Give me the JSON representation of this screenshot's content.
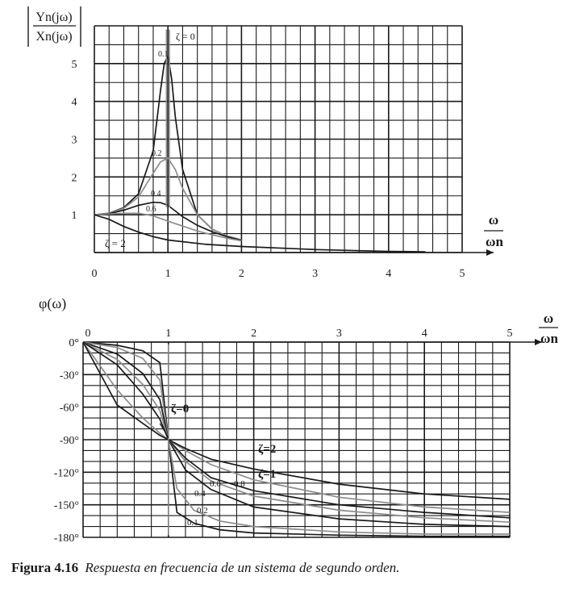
{
  "figure": {
    "caption_label": "Figura 4.16",
    "caption_text": "Respuesta en frecuencia de un sistema de segundo orden."
  },
  "chart_data": [
    {
      "type": "line",
      "title": "",
      "ylabel_num": "Yn(jω)",
      "ylabel_den": "Xn(jω)",
      "xlabel_num": "ω",
      "xlabel_den": "ωn",
      "xlim": [
        0,
        5
      ],
      "ylim": [
        0,
        6
      ],
      "grid": true,
      "x_ticks": [
        "0",
        "1",
        "2",
        "3",
        "4",
        "5"
      ],
      "y_ticks": [
        "1",
        "2",
        "3",
        "4",
        "5"
      ],
      "annotations": [
        "ζ = 0",
        "0.1",
        "0.2",
        "0.4",
        "0.6",
        "ζ = 2"
      ],
      "series": [
        {
          "name": "0.1",
          "x": [
            0,
            0.2,
            0.4,
            0.6,
            0.8,
            0.9,
            0.95,
            1.0,
            1.05,
            1.1,
            1.2,
            1.4,
            1.6,
            1.8,
            2.0
          ],
          "y": [
            1.0,
            1.04,
            1.19,
            1.55,
            2.7,
            4.3,
            5.0,
            5.2,
            4.6,
            3.6,
            2.2,
            1.0,
            0.62,
            0.44,
            0.33
          ]
        },
        {
          "name": "0.2",
          "x": [
            0,
            0.2,
            0.4,
            0.6,
            0.8,
            0.9,
            1.0,
            1.1,
            1.2,
            1.4,
            1.6,
            1.8,
            2.0
          ],
          "y": [
            1.0,
            1.04,
            1.17,
            1.47,
            2.1,
            2.4,
            2.5,
            2.2,
            1.7,
            1.0,
            0.62,
            0.44,
            0.33
          ]
        },
        {
          "name": "0.4",
          "x": [
            0,
            0.2,
            0.4,
            0.6,
            0.8,
            0.9,
            1.0,
            1.1,
            1.2,
            1.4,
            1.6,
            1.8,
            2.0
          ],
          "y": [
            1.0,
            1.03,
            1.12,
            1.25,
            1.33,
            1.32,
            1.25,
            1.1,
            0.95,
            0.72,
            0.55,
            0.42,
            0.32
          ]
        },
        {
          "name": "0.6",
          "x": [
            0,
            0.2,
            0.4,
            0.6,
            0.8,
            1.0,
            1.2,
            1.4,
            1.6,
            1.8,
            2.0
          ],
          "y": [
            1.0,
            1.02,
            1.04,
            1.04,
            0.97,
            0.83,
            0.7,
            0.57,
            0.47,
            0.38,
            0.31
          ]
        },
        {
          "name": "ζ = 2",
          "x": [
            0,
            0.2,
            0.4,
            0.6,
            0.8,
            1.0,
            1.5,
            2.0,
            3.0,
            4.0,
            4.5
          ],
          "y": [
            1.0,
            0.88,
            0.69,
            0.54,
            0.42,
            0.33,
            0.22,
            0.16,
            0.08,
            0.03,
            0.02
          ]
        }
      ]
    },
    {
      "type": "line",
      "title": "",
      "ylabel": "φ(ω)",
      "xlabel_num": "ω",
      "xlabel_den": "ωn",
      "xlim": [
        0,
        5
      ],
      "ylim": [
        -180,
        0
      ],
      "grid": true,
      "x_ticks": [
        "0",
        "1",
        "2",
        "3",
        "4",
        "5"
      ],
      "y_ticks": [
        "0°",
        "-30°",
        "-60°",
        "-90°",
        "-120°",
        "-150°",
        "-180°"
      ],
      "annotations": [
        "ζ=0",
        "ζ=2",
        "ζ=1",
        "0.8",
        "0.6",
        "0.4",
        "0.2",
        "0.1"
      ],
      "series": [
        {
          "name": "0.1",
          "x": [
            0,
            0.4,
            0.7,
            0.9,
            1.0,
            1.1,
            1.3,
            1.6,
            2.0,
            3.0,
            4.0,
            5.0
          ],
          "y": [
            0,
            -3,
            -8,
            -19,
            -90,
            -157,
            -167,
            -173,
            -176,
            -178,
            -179,
            -179
          ]
        },
        {
          "name": "0.2",
          "x": [
            0,
            0.4,
            0.7,
            0.9,
            1.0,
            1.1,
            1.3,
            1.6,
            2.0,
            3.0,
            4.0,
            5.0
          ],
          "y": [
            0,
            -5,
            -15,
            -35,
            -90,
            -135,
            -155,
            -165,
            -170,
            -175,
            -177,
            -177
          ]
        },
        {
          "name": "0.4",
          "x": [
            0,
            0.4,
            0.7,
            0.9,
            1.0,
            1.2,
            1.5,
            2.0,
            3.0,
            4.0,
            5.0
          ],
          "y": [
            0,
            -11,
            -29,
            -53,
            -90,
            -118,
            -136,
            -152,
            -163,
            -168,
            -170
          ]
        },
        {
          "name": "0.6",
          "x": [
            0,
            0.4,
            0.7,
            0.9,
            1.0,
            1.2,
            1.5,
            2.0,
            3.0,
            4.0,
            5.0
          ],
          "y": [
            0,
            -16,
            -39,
            -63,
            -90,
            -110,
            -128,
            -142,
            -155,
            -162,
            -166
          ]
        },
        {
          "name": "0.8",
          "x": [
            0,
            0.4,
            0.7,
            0.9,
            1.0,
            1.2,
            1.5,
            2.0,
            3.0,
            4.0,
            5.0
          ],
          "y": [
            0,
            -21,
            -48,
            -71,
            -90,
            -107,
            -125,
            -137,
            -150,
            -157,
            -162
          ]
        },
        {
          "name": "ζ=1",
          "x": [
            0,
            0.4,
            0.7,
            0.9,
            1.0,
            1.2,
            1.5,
            2.0,
            3.0,
            4.0,
            5.0
          ],
          "y": [
            0,
            -44,
            -70,
            -84,
            -90,
            -100,
            -113,
            -127,
            -143,
            -152,
            -157
          ]
        },
        {
          "name": "ζ=2",
          "x": [
            0,
            0.4,
            0.7,
            0.9,
            1.0,
            1.2,
            1.5,
            2.0,
            3.0,
            4.0,
            5.0
          ],
          "y": [
            0,
            -58,
            -75,
            -86,
            -90,
            -98,
            -108,
            -117,
            -131,
            -140,
            -145
          ]
        }
      ]
    }
  ]
}
